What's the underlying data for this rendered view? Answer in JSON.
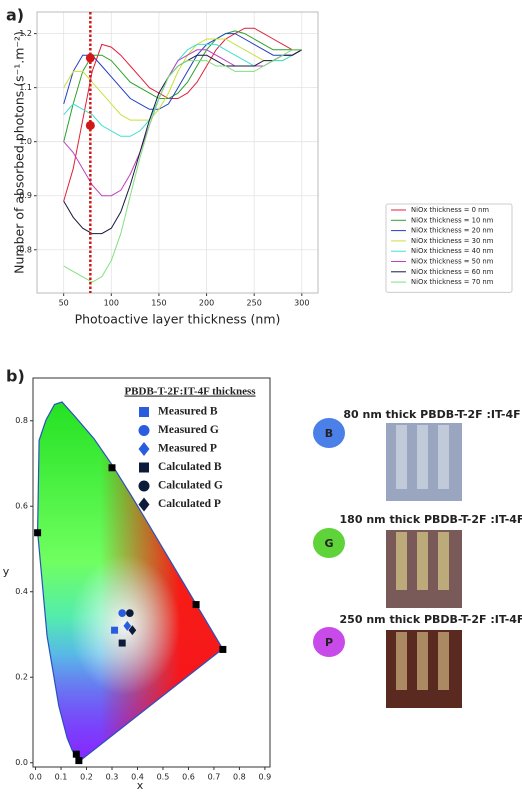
{
  "panel_labels": [
    "a)",
    "b)"
  ],
  "chart_data": [
    {
      "type": "line",
      "x_label": "Photoactive layer thickness (nm)",
      "y_label": "Number of absorbed photons (s⁻¹.m⁻²)",
      "x": [
        50,
        60,
        70,
        80,
        90,
        100,
        110,
        120,
        130,
        140,
        150,
        160,
        170,
        180,
        190,
        200,
        210,
        220,
        230,
        240,
        250,
        260,
        270,
        280,
        290,
        300
      ],
      "series": [
        {
          "name": "NiOx thickness = 0 nm",
          "color": "#e0203a",
          "values": [
            0.89,
            0.95,
            1.04,
            1.13,
            1.18,
            1.175,
            1.16,
            1.14,
            1.12,
            1.1,
            1.09,
            1.08,
            1.08,
            1.09,
            1.11,
            1.14,
            1.17,
            1.19,
            1.2,
            1.21,
            1.21,
            1.2,
            1.19,
            1.18,
            1.17,
            1.17
          ]
        },
        {
          "name": "NiOx thickness = 10 nm",
          "color": "#2ca02c",
          "values": [
            1.0,
            1.07,
            1.13,
            1.16,
            1.16,
            1.15,
            1.13,
            1.11,
            1.1,
            1.09,
            1.08,
            1.08,
            1.09,
            1.11,
            1.14,
            1.17,
            1.19,
            1.2,
            1.205,
            1.2,
            1.19,
            1.18,
            1.17,
            1.17,
            1.17,
            1.17
          ]
        },
        {
          "name": "NiOx thickness = 20 nm",
          "color": "#2040c0",
          "values": [
            1.07,
            1.13,
            1.16,
            1.16,
            1.14,
            1.12,
            1.1,
            1.08,
            1.07,
            1.06,
            1.06,
            1.07,
            1.1,
            1.13,
            1.16,
            1.18,
            1.19,
            1.2,
            1.2,
            1.19,
            1.18,
            1.17,
            1.16,
            1.16,
            1.16,
            1.17
          ]
        },
        {
          "name": "NiOx thickness = 30 nm",
          "color": "#c8e040",
          "values": [
            1.1,
            1.13,
            1.13,
            1.11,
            1.09,
            1.07,
            1.05,
            1.04,
            1.04,
            1.04,
            1.06,
            1.09,
            1.13,
            1.16,
            1.18,
            1.19,
            1.19,
            1.19,
            1.18,
            1.17,
            1.16,
            1.15,
            1.15,
            1.15,
            1.16,
            1.17
          ]
        },
        {
          "name": "NiOx thickness = 40 nm",
          "color": "#40e0d0",
          "values": [
            1.05,
            1.07,
            1.06,
            1.05,
            1.03,
            1.02,
            1.01,
            1.01,
            1.02,
            1.04,
            1.08,
            1.12,
            1.15,
            1.17,
            1.18,
            1.18,
            1.18,
            1.17,
            1.16,
            1.15,
            1.14,
            1.14,
            1.15,
            1.15,
            1.16,
            1.17
          ]
        },
        {
          "name": "NiOx thickness = 50 nm",
          "color": "#c040c0",
          "values": [
            1.0,
            0.98,
            0.95,
            0.92,
            0.9,
            0.9,
            0.91,
            0.94,
            0.98,
            1.03,
            1.08,
            1.12,
            1.15,
            1.16,
            1.17,
            1.17,
            1.16,
            1.15,
            1.14,
            1.14,
            1.14,
            1.14,
            1.15,
            1.16,
            1.16,
            1.17
          ]
        },
        {
          "name": "NiOx thickness = 60 nm",
          "color": "#1a1a40",
          "values": [
            0.89,
            0.86,
            0.84,
            0.83,
            0.83,
            0.84,
            0.87,
            0.92,
            0.98,
            1.04,
            1.09,
            1.12,
            1.14,
            1.15,
            1.16,
            1.16,
            1.15,
            1.14,
            1.14,
            1.14,
            1.14,
            1.15,
            1.15,
            1.16,
            1.16,
            1.17
          ]
        },
        {
          "name": "NiOx thickness = 70 nm",
          "color": "#80e080",
          "values": [
            0.77,
            0.76,
            0.75,
            0.74,
            0.75,
            0.78,
            0.83,
            0.9,
            0.97,
            1.03,
            1.08,
            1.12,
            1.14,
            1.15,
            1.15,
            1.15,
            1.14,
            1.14,
            1.13,
            1.13,
            1.13,
            1.14,
            1.15,
            1.16,
            1.17,
            1.17
          ]
        }
      ],
      "marker_x": 78,
      "highlight_points": {
        "color": "#d01818",
        "x": [
          78,
          78
        ],
        "y": [
          1.155,
          1.03
        ]
      },
      "xlim": [
        22,
        317
      ],
      "ylim": [
        0.72,
        1.24
      ],
      "xticks": [
        50,
        100,
        150,
        200,
        250,
        300
      ],
      "yticks": [
        0.8,
        0.9,
        {
          "value": 1,
          "label": "1.0"
        },
        1.1,
        1.2
      ],
      "grid": true,
      "legend": "lower right"
    },
    {
      "type": "scatter",
      "x_label": "x",
      "y_label": "y",
      "legend_title": "PBDB-T-2F:IT-4F thickness",
      "series": [
        {
          "name": "Measured B",
          "color": "#2a5ce0",
          "marker": "square",
          "x": [
            0.31
          ],
          "y": [
            0.31
          ]
        },
        {
          "name": "Measured G",
          "color": "#2a5ce0",
          "marker": "circle",
          "x": [
            0.34
          ],
          "y": [
            0.35
          ]
        },
        {
          "name": "Measured P",
          "color": "#2a5ce0",
          "marker": "diamond",
          "x": [
            0.36
          ],
          "y": [
            0.32
          ]
        },
        {
          "name": "Calculated B",
          "color": "#0d1b3a",
          "marker": "square",
          "x": [
            0.34
          ],
          "y": [
            0.28
          ]
        },
        {
          "name": "Calculated G",
          "color": "#0d1b3a",
          "marker": "circle",
          "x": [
            0.37
          ],
          "y": [
            0.35
          ]
        },
        {
          "name": "Calculated P",
          "color": "#0d1b3a",
          "marker": "diamond",
          "x": [
            0.38
          ],
          "y": [
            0.31
          ]
        },
        {
          "color": "#000000",
          "marker": "square",
          "x": [
            0.008,
            0.3,
            0.63,
            0.735,
            0.16,
            0.17
          ],
          "y": [
            0.538,
            0.69,
            0.37,
            0.265,
            0.02,
            0.005
          ]
        }
      ],
      "xlim": [
        -0.01,
        0.92
      ],
      "ylim": [
        -0.01,
        0.9
      ],
      "xticks": [
        {
          "value": 0,
          "label": "0.0"
        },
        0.1,
        0.2,
        0.3,
        0.4,
        0.5,
        0.6,
        0.7,
        0.8,
        0.9
      ],
      "yticks": [
        {
          "value": 0,
          "label": "0.0"
        },
        0.2,
        0.4,
        0.6,
        0.8
      ]
    }
  ],
  "samples": [
    {
      "label": "B",
      "color": "#4a80e8",
      "caption": "80 nm thick PBDB-T-2F :IT-4F"
    },
    {
      "label": "G",
      "color": "#5ed33a",
      "caption": "180 nm thick PBDB-T-2F :IT-4F"
    },
    {
      "label": "P",
      "color": "#c84ae8",
      "caption": "250 nm thick PBDB-T-2F :IT-4F"
    }
  ]
}
